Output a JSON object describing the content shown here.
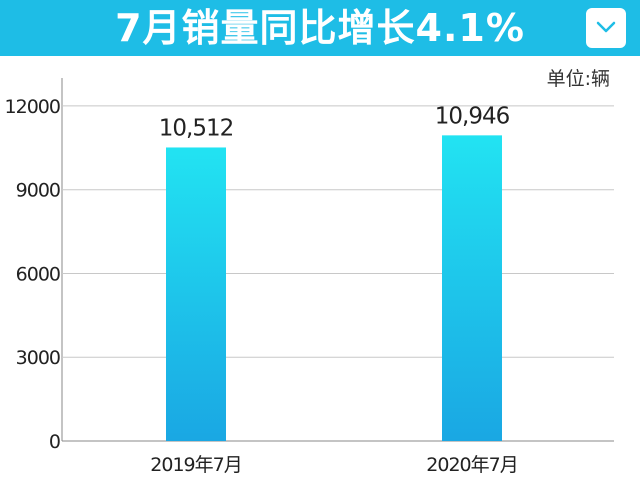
{
  "header": {
    "title": "7月销量同比增长4.1%",
    "collapse_icon": "chevron-down-icon",
    "background": "#1ebde6"
  },
  "chart_data": {
    "type": "bar",
    "title": "7月销量同比增长4.1%",
    "unit_label": "单位:辆",
    "categories": [
      "2019年7月",
      "2020年7月"
    ],
    "values": [
      10512,
      10946
    ],
    "data_labels": [
      "10,512",
      "10,946"
    ],
    "ylim": [
      0,
      13000
    ],
    "yticks": [
      0,
      3000,
      6000,
      9000,
      12000
    ],
    "grid": true,
    "legend": "none",
    "bar_gradient": [
      "#22e3f2",
      "#1aa7e3"
    ]
  }
}
